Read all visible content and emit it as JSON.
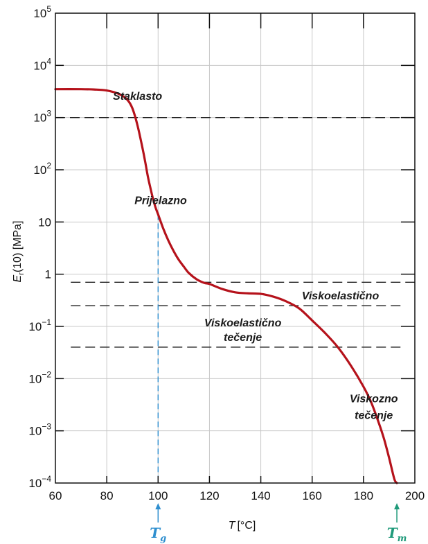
{
  "chart_data": {
    "type": "line",
    "title": "",
    "xlabel": {
      "main": "T",
      "unit": "[°C]"
    },
    "ylabel": {
      "main": "E",
      "sub": "r",
      "rest": "(10) [MPa]"
    },
    "xlim": [
      60,
      200
    ],
    "ylim": [
      0.0001,
      100000
    ],
    "yscale": "log",
    "grid": true,
    "x_ticks": [
      {
        "value": 60,
        "label": "60"
      },
      {
        "value": 80,
        "label": "80"
      },
      {
        "value": 100,
        "label": "100"
      },
      {
        "value": 120,
        "label": "120"
      },
      {
        "value": 140,
        "label": "140"
      },
      {
        "value": 160,
        "label": "160"
      },
      {
        "value": 180,
        "label": "180"
      },
      {
        "value": 200,
        "label": "200"
      }
    ],
    "y_ticks": [
      {
        "value": 100000,
        "base": "10",
        "exp": "5"
      },
      {
        "value": 10000,
        "base": "10",
        "exp": "4"
      },
      {
        "value": 1000,
        "base": "10",
        "exp": "3"
      },
      {
        "value": 100,
        "base": "10",
        "exp": "2"
      },
      {
        "value": 10,
        "base": "10",
        "exp": ""
      },
      {
        "value": 1,
        "base": "1",
        "exp": ""
      },
      {
        "value": 0.1,
        "base": "10",
        "exp": "−1"
      },
      {
        "value": 0.01,
        "base": "10",
        "exp": "−2"
      },
      {
        "value": 0.001,
        "base": "10",
        "exp": "−3"
      },
      {
        "value": 0.0001,
        "base": "10",
        "exp": "−4"
      }
    ],
    "series": [
      {
        "color": "#b5121b",
        "x": [
          60,
          70,
          75,
          80,
          85,
          88,
          90,
          92,
          94,
          95,
          96,
          97,
          98,
          99,
          100,
          102,
          104,
          106,
          108,
          110,
          112,
          115,
          118,
          120,
          125,
          130,
          135,
          140,
          145,
          150,
          155,
          160,
          165,
          170,
          175,
          180,
          183,
          186,
          188,
          190,
          192,
          193
        ],
        "y": [
          3500,
          3500,
          3450,
          3300,
          2800,
          2200,
          1500,
          700,
          250,
          140,
          75,
          45,
          28,
          19,
          14,
          7.5,
          4.4,
          2.8,
          1.9,
          1.4,
          1.05,
          0.8,
          0.68,
          0.65,
          0.52,
          0.45,
          0.43,
          0.42,
          0.37,
          0.3,
          0.22,
          0.13,
          0.075,
          0.04,
          0.018,
          0.007,
          0.0035,
          0.0014,
          0.0007,
          0.0003,
          0.00012,
          0.0001
        ]
      }
    ],
    "reference_lines": [
      {
        "y": 1000,
        "x_from": 60,
        "x_to": 200,
        "style": "dashed"
      },
      {
        "y": 0.7,
        "x_from": 66,
        "x_to": 200,
        "style": "dashed"
      },
      {
        "y": 0.25,
        "x_from": 66,
        "x_to": 195,
        "style": "dashed"
      },
      {
        "y": 0.04,
        "x_from": 66,
        "x_to": 195,
        "style": "dashed"
      }
    ],
    "markers": [
      {
        "x": 100,
        "y_top": 14,
        "symbol": "T",
        "sub": "g",
        "color": "#2f8fcf"
      },
      {
        "x": 193,
        "symbol": "T",
        "sub": "m",
        "color": "#1f9a7a"
      }
    ],
    "annotations": [
      {
        "text": "Staklasto",
        "x": 92,
        "y": 2200
      },
      {
        "text": "Prijelazno",
        "x": 101,
        "y": 22
      },
      {
        "text": "Viskoelastično",
        "x": 171,
        "y": 0.33
      },
      {
        "text": "Viskoelastično",
        "x": 133,
        "y": 0.1
      },
      {
        "text": "tečenje",
        "x": 133,
        "y": 0.053
      },
      {
        "text": "Viskozno",
        "x": 184,
        "y": 0.0035
      },
      {
        "text": "tečenje",
        "x": 184,
        "y": 0.0017
      }
    ]
  }
}
